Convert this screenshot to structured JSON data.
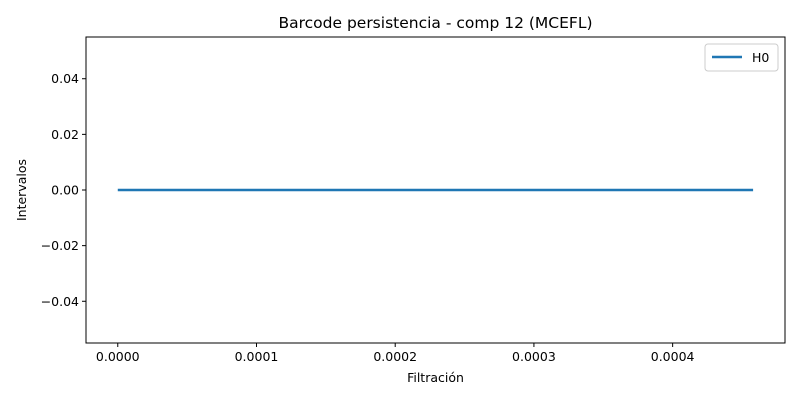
{
  "chart_data": {
    "type": "line",
    "title": "Barcode persistencia - comp 12 (MCEFL)",
    "xlabel": "Filtración",
    "ylabel": "Intervalos",
    "xlim": [
      -2.29e-05,
      0.000481
    ],
    "ylim": [
      -0.055,
      0.055
    ],
    "x_ticks": [
      0.0,
      0.0001,
      0.0002,
      0.0003,
      0.0004
    ],
    "x_tick_labels": [
      "0.0000",
      "0.0001",
      "0.0002",
      "0.0003",
      "0.0004"
    ],
    "y_ticks": [
      0.04,
      0.02,
      0.0,
      -0.02,
      -0.04
    ],
    "y_tick_labels": [
      "0.04",
      "0.02",
      "0.00",
      "−0.02",
      "−0.04"
    ],
    "grid": false,
    "legend_position": "top-right",
    "series": [
      {
        "name": "H0",
        "color": "#1f77b4",
        "x": [
          0.0,
          0.000458
        ],
        "y": [
          0.0,
          0.0
        ]
      }
    ]
  }
}
